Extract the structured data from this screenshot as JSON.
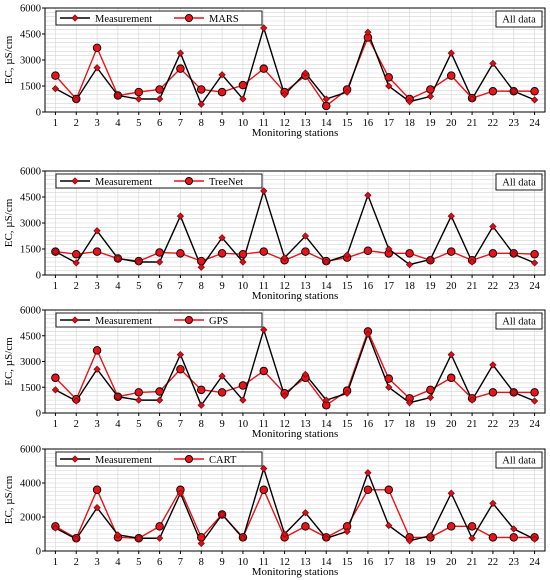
{
  "chart_data": [
    {
      "type": "line",
      "x": [
        1,
        2,
        3,
        4,
        5,
        6,
        7,
        8,
        9,
        10,
        11,
        12,
        13,
        14,
        15,
        16,
        17,
        18,
        19,
        20,
        21,
        22,
        23,
        24
      ],
      "xlabel": "Monitoring stations",
      "ylabel": "EC, µS/cm",
      "ylim": [
        0,
        6000
      ],
      "yticks": [
        0,
        1500,
        3000,
        4500,
        6000
      ],
      "grid": true,
      "legend_position": "top-left",
      "annotation": "All data",
      "series": [
        {
          "name": "Measurement",
          "color": "#000000",
          "marker": "diamond",
          "values": [
            1350,
            700,
            2550,
            950,
            750,
            750,
            3400,
            450,
            2150,
            750,
            4850,
            1000,
            2250,
            750,
            1150,
            4600,
            1500,
            600,
            900,
            3400,
            750,
            2800,
            1200,
            700
          ]
        },
        {
          "name": "MARS",
          "color": "#e8141a",
          "marker": "circle",
          "values": [
            2100,
            750,
            3700,
            950,
            1150,
            1300,
            2500,
            1300,
            1150,
            1550,
            2500,
            1150,
            2100,
            350,
            1300,
            4300,
            2000,
            750,
            1300,
            2100,
            800,
            1200,
            1200,
            1200
          ]
        }
      ]
    },
    {
      "type": "line",
      "x": [
        1,
        2,
        3,
        4,
        5,
        6,
        7,
        8,
        9,
        10,
        11,
        12,
        13,
        14,
        15,
        16,
        17,
        18,
        19,
        20,
        21,
        22,
        23,
        24
      ],
      "xlabel": "Monitoring stations",
      "ylabel": "EC, µS/cm",
      "ylim": [
        0,
        6000
      ],
      "yticks": [
        0,
        1500,
        3000,
        4500,
        6000
      ],
      "grid": true,
      "legend_position": "top-left",
      "annotation": "All data",
      "series": [
        {
          "name": "Measurement",
          "color": "#000000",
          "marker": "diamond",
          "values": [
            1350,
            700,
            2550,
            950,
            750,
            750,
            3400,
            450,
            2150,
            750,
            4850,
            1000,
            2250,
            750,
            1150,
            4600,
            1500,
            600,
            900,
            3400,
            750,
            2800,
            1200,
            700
          ]
        },
        {
          "name": "TreeNet",
          "color": "#e8141a",
          "marker": "circle",
          "values": [
            1350,
            1200,
            1350,
            950,
            800,
            1300,
            1250,
            800,
            1250,
            1200,
            1350,
            850,
            1350,
            800,
            1000,
            1400,
            1250,
            1250,
            850,
            1350,
            850,
            1250,
            1250,
            1200
          ]
        }
      ]
    },
    {
      "type": "line",
      "x": [
        1,
        2,
        3,
        4,
        5,
        6,
        7,
        8,
        9,
        10,
        11,
        12,
        13,
        14,
        15,
        16,
        17,
        18,
        19,
        20,
        21,
        22,
        23,
        24
      ],
      "xlabel": "Monitoring stations",
      "ylabel": "EC, µS/cm",
      "ylim": [
        0,
        6000
      ],
      "yticks": [
        0,
        1500,
        3000,
        4500,
        6000
      ],
      "grid": true,
      "legend_position": "top-left",
      "annotation": "All data",
      "series": [
        {
          "name": "Measurement",
          "color": "#000000",
          "marker": "diamond",
          "values": [
            1350,
            700,
            2550,
            950,
            750,
            750,
            3400,
            450,
            2150,
            750,
            4850,
            1000,
            2250,
            750,
            1150,
            4600,
            1500,
            600,
            900,
            3400,
            750,
            2800,
            1200,
            700
          ]
        },
        {
          "name": "GPS",
          "color": "#e8141a",
          "marker": "circle",
          "values": [
            2050,
            800,
            3650,
            950,
            1200,
            1250,
            2550,
            1350,
            1200,
            1600,
            2450,
            1150,
            2050,
            450,
            1300,
            4750,
            2000,
            850,
            1350,
            2050,
            850,
            1200,
            1200,
            1200
          ]
        }
      ]
    },
    {
      "type": "line",
      "x": [
        1,
        2,
        3,
        4,
        5,
        6,
        7,
        8,
        9,
        10,
        11,
        12,
        13,
        14,
        15,
        16,
        17,
        18,
        19,
        20,
        21,
        22,
        23,
        24
      ],
      "xlabel": "Monitoring stations",
      "ylabel": "EC, µS/cm",
      "ylim": [
        0,
        6000
      ],
      "yticks": [
        0,
        2000,
        4000,
        6000
      ],
      "grid": true,
      "legend_position": "top-left",
      "annotation": "All data",
      "series": [
        {
          "name": "Measurement",
          "color": "#000000",
          "marker": "diamond",
          "values": [
            1350,
            700,
            2550,
            950,
            750,
            750,
            3400,
            450,
            2150,
            750,
            4850,
            1000,
            2250,
            750,
            1150,
            4600,
            1500,
            600,
            900,
            3400,
            750,
            2800,
            1300,
            700
          ]
        },
        {
          "name": "CART",
          "color": "#e8141a",
          "marker": "circle",
          "values": [
            1450,
            750,
            3600,
            800,
            750,
            1450,
            3600,
            800,
            2150,
            800,
            3600,
            800,
            1450,
            800,
            1450,
            3600,
            3600,
            800,
            800,
            1450,
            1450,
            800,
            800,
            800
          ]
        }
      ]
    }
  ]
}
